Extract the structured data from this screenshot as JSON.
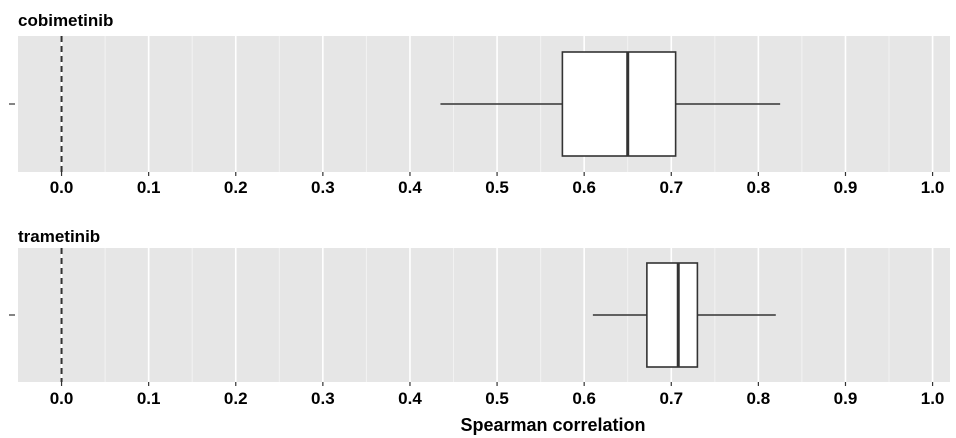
{
  "chart_data": [
    {
      "type": "boxplot",
      "title": "cobimetinib",
      "xlabel": "",
      "xlim": [
        -0.05,
        1.02
      ],
      "xticks": [
        "0.0",
        "0.1",
        "0.2",
        "0.3",
        "0.4",
        "0.5",
        "0.6",
        "0.7",
        "0.8",
        "0.9",
        "1.0"
      ],
      "reference_line": 0.0,
      "box": {
        "whisker_low": 0.435,
        "q1": 0.575,
        "median": 0.65,
        "q3": 0.705,
        "whisker_high": 0.825
      }
    },
    {
      "type": "boxplot",
      "title": "trametinib",
      "xlabel": "Spearman correlation",
      "xlim": [
        -0.05,
        1.02
      ],
      "xticks": [
        "0.0",
        "0.1",
        "0.2",
        "0.3",
        "0.4",
        "0.5",
        "0.6",
        "0.7",
        "0.8",
        "0.9",
        "1.0"
      ],
      "reference_line": 0.0,
      "box": {
        "whisker_low": 0.61,
        "q1": 0.672,
        "median": 0.708,
        "q3": 0.73,
        "whisker_high": 0.82
      }
    }
  ],
  "colors": {
    "panel_bg": "#e6e6e6",
    "grid": "#ffffff",
    "box_fill": "#ffffff",
    "stroke": "#333333"
  }
}
